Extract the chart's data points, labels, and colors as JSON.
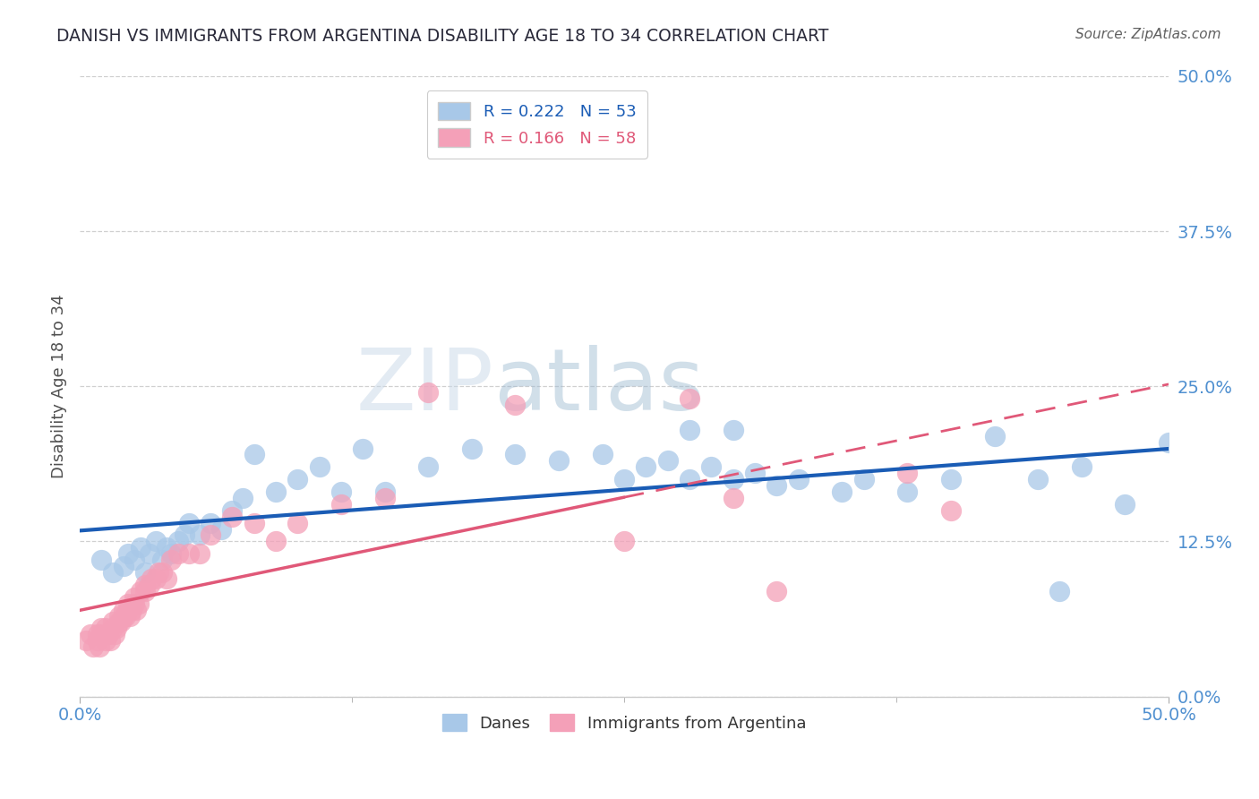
{
  "title": "DANISH VS IMMIGRANTS FROM ARGENTINA DISABILITY AGE 18 TO 34 CORRELATION CHART",
  "source": "Source: ZipAtlas.com",
  "ylabel": "Disability Age 18 to 34",
  "xlim": [
    0.0,
    0.5
  ],
  "ylim": [
    0.0,
    0.5
  ],
  "yticks": [
    0.0,
    0.125,
    0.25,
    0.375,
    0.5
  ],
  "ytick_labels": [
    "0.0%",
    "12.5%",
    "25.0%",
    "37.5%",
    "50.0%"
  ],
  "xtick_edge_labels": [
    "0.0%",
    "50.0%"
  ],
  "xtick_edge_positions": [
    0.0,
    0.5
  ],
  "danes_R": 0.222,
  "danes_N": 53,
  "argentina_R": 0.166,
  "argentina_N": 58,
  "danes_color": "#a8c8e8",
  "argentina_color": "#f4a0b8",
  "danes_line_color": "#1a5cb5",
  "argentina_line_color": "#e05878",
  "tick_color": "#5090d0",
  "background_color": "#ffffff",
  "grid_color": "#d0d0d0",
  "title_color": "#2a2a3a",
  "danes_x": [
    0.01,
    0.015,
    0.02,
    0.022,
    0.025,
    0.028,
    0.03,
    0.032,
    0.035,
    0.038,
    0.04,
    0.042,
    0.045,
    0.048,
    0.05,
    0.055,
    0.06,
    0.065,
    0.07,
    0.075,
    0.08,
    0.09,
    0.1,
    0.11,
    0.12,
    0.13,
    0.14,
    0.16,
    0.18,
    0.2,
    0.22,
    0.24,
    0.25,
    0.26,
    0.27,
    0.28,
    0.29,
    0.3,
    0.31,
    0.32,
    0.33,
    0.35,
    0.36,
    0.38,
    0.4,
    0.42,
    0.44,
    0.46,
    0.48,
    0.5,
    0.28,
    0.3,
    0.45
  ],
  "danes_y": [
    0.11,
    0.1,
    0.105,
    0.115,
    0.11,
    0.12,
    0.1,
    0.115,
    0.125,
    0.11,
    0.12,
    0.115,
    0.125,
    0.13,
    0.14,
    0.13,
    0.14,
    0.135,
    0.15,
    0.16,
    0.195,
    0.165,
    0.175,
    0.185,
    0.165,
    0.2,
    0.165,
    0.185,
    0.2,
    0.195,
    0.19,
    0.195,
    0.175,
    0.185,
    0.19,
    0.175,
    0.185,
    0.175,
    0.18,
    0.17,
    0.175,
    0.165,
    0.175,
    0.165,
    0.175,
    0.21,
    0.175,
    0.185,
    0.155,
    0.205,
    0.215,
    0.215,
    0.085
  ],
  "argentina_x": [
    0.003,
    0.005,
    0.006,
    0.008,
    0.008,
    0.009,
    0.01,
    0.01,
    0.012,
    0.012,
    0.013,
    0.014,
    0.015,
    0.015,
    0.016,
    0.017,
    0.018,
    0.018,
    0.019,
    0.02,
    0.02,
    0.021,
    0.022,
    0.022,
    0.023,
    0.024,
    0.025,
    0.025,
    0.026,
    0.027,
    0.028,
    0.03,
    0.03,
    0.032,
    0.033,
    0.035,
    0.036,
    0.038,
    0.04,
    0.042,
    0.045,
    0.05,
    0.055,
    0.06,
    0.07,
    0.08,
    0.09,
    0.1,
    0.12,
    0.14,
    0.16,
    0.2,
    0.25,
    0.28,
    0.3,
    0.32,
    0.38,
    0.4
  ],
  "argentina_y": [
    0.045,
    0.05,
    0.04,
    0.045,
    0.05,
    0.04,
    0.05,
    0.055,
    0.045,
    0.055,
    0.05,
    0.045,
    0.055,
    0.06,
    0.05,
    0.055,
    0.06,
    0.065,
    0.06,
    0.065,
    0.07,
    0.065,
    0.07,
    0.075,
    0.065,
    0.07,
    0.075,
    0.08,
    0.07,
    0.075,
    0.085,
    0.085,
    0.09,
    0.09,
    0.095,
    0.095,
    0.1,
    0.1,
    0.095,
    0.11,
    0.115,
    0.115,
    0.115,
    0.13,
    0.145,
    0.14,
    0.125,
    0.14,
    0.155,
    0.16,
    0.245,
    0.235,
    0.125,
    0.24,
    0.16,
    0.085,
    0.18,
    0.15
  ]
}
